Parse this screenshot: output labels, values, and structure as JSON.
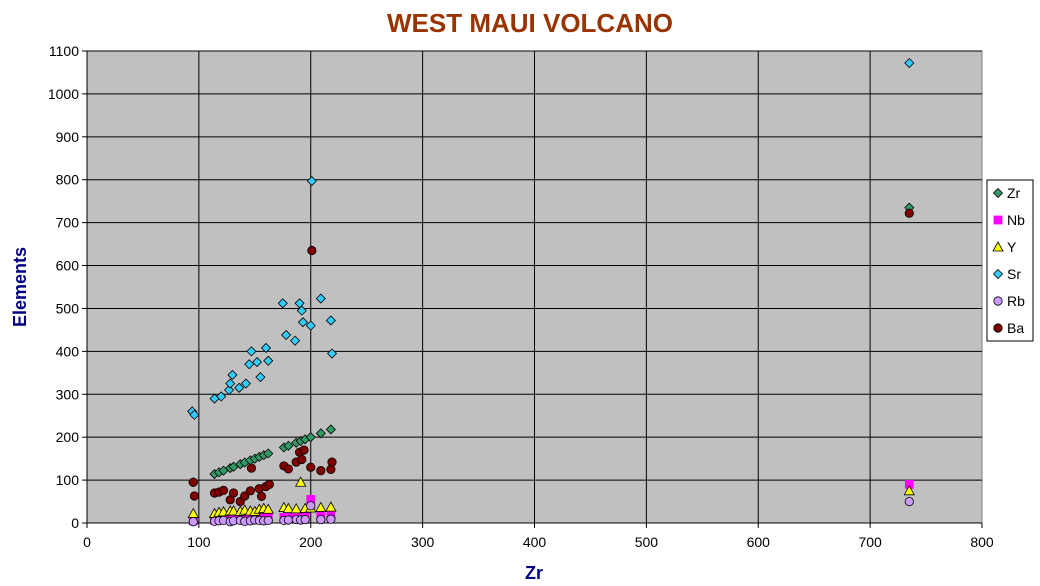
{
  "chart_data": {
    "type": "scatter",
    "title": "WEST MAUI VOLCANO",
    "xlabel": "Zr",
    "ylabel": "Elements",
    "xlim": [
      0,
      800
    ],
    "ylim": [
      0,
      1100
    ],
    "xticks": [
      "0",
      "100",
      "200",
      "300",
      "400",
      "500",
      "600",
      "700",
      "800"
    ],
    "yticks": [
      "0",
      "100",
      "200",
      "300",
      "400",
      "500",
      "600",
      "700",
      "800",
      "900",
      "1000",
      "1100"
    ],
    "grid": true,
    "legend_position": "right",
    "plot_background": "#c0c0c0",
    "series": [
      {
        "name": "Zr",
        "marker": "diamond",
        "color": "#339966",
        "points": [
          [
            95,
            95
          ],
          [
            114,
            114
          ],
          [
            118,
            118
          ],
          [
            122,
            122
          ],
          [
            128,
            128
          ],
          [
            131,
            131
          ],
          [
            137,
            137
          ],
          [
            141,
            141
          ],
          [
            146,
            146
          ],
          [
            150,
            150
          ],
          [
            154,
            154
          ],
          [
            158,
            158
          ],
          [
            162,
            162
          ],
          [
            176,
            176
          ],
          [
            180,
            180
          ],
          [
            187,
            187
          ],
          [
            191,
            191
          ],
          [
            195,
            195
          ],
          [
            200,
            200
          ],
          [
            209,
            209
          ],
          [
            218,
            218
          ],
          [
            735,
            735
          ]
        ]
      },
      {
        "name": "Nb",
        "marker": "square",
        "color": "#ff00ff",
        "points": [
          [
            95,
            5
          ],
          [
            114,
            6
          ],
          [
            118,
            7
          ],
          [
            122,
            8
          ],
          [
            128,
            8
          ],
          [
            131,
            9
          ],
          [
            137,
            9
          ],
          [
            141,
            10
          ],
          [
            146,
            10
          ],
          [
            150,
            10
          ],
          [
            154,
            11
          ],
          [
            158,
            12
          ],
          [
            162,
            12
          ],
          [
            176,
            13
          ],
          [
            180,
            13
          ],
          [
            187,
            14
          ],
          [
            191,
            14
          ],
          [
            195,
            15
          ],
          [
            200,
            55
          ],
          [
            209,
            20
          ],
          [
            218,
            18
          ],
          [
            735,
            90
          ]
        ]
      },
      {
        "name": "Y",
        "marker": "triangle",
        "color": "#ffff00",
        "points": [
          [
            95,
            22
          ],
          [
            114,
            22
          ],
          [
            118,
            25
          ],
          [
            122,
            26
          ],
          [
            128,
            28
          ],
          [
            131,
            28
          ],
          [
            137,
            27
          ],
          [
            141,
            30
          ],
          [
            146,
            28
          ],
          [
            150,
            27
          ],
          [
            154,
            32
          ],
          [
            158,
            34
          ],
          [
            162,
            32
          ],
          [
            176,
            36
          ],
          [
            180,
            34
          ],
          [
            187,
            33
          ],
          [
            191,
            95
          ],
          [
            195,
            34
          ],
          [
            200,
            35
          ],
          [
            209,
            36
          ],
          [
            218,
            37
          ],
          [
            735,
            75
          ]
        ]
      },
      {
        "name": "Sr",
        "marker": "diamond",
        "color": "#33ccff",
        "points": [
          [
            94,
            260
          ],
          [
            96,
            252
          ],
          [
            114,
            290
          ],
          [
            120,
            295
          ],
          [
            127,
            310
          ],
          [
            128,
            325
          ],
          [
            130,
            345
          ],
          [
            136,
            315
          ],
          [
            142,
            325
          ],
          [
            145,
            370
          ],
          [
            147,
            400
          ],
          [
            152,
            375
          ],
          [
            155,
            340
          ],
          [
            160,
            408
          ],
          [
            162,
            378
          ],
          [
            175,
            512
          ],
          [
            178,
            438
          ],
          [
            186,
            425
          ],
          [
            190,
            512
          ],
          [
            192,
            495
          ],
          [
            193,
            468
          ],
          [
            200,
            460
          ],
          [
            201,
            797
          ],
          [
            209,
            523
          ],
          [
            218,
            472
          ],
          [
            219,
            395
          ],
          [
            735,
            1072
          ]
        ]
      },
      {
        "name": "Rb",
        "marker": "circle",
        "color": "#cc99ff",
        "points": [
          [
            95,
            3
          ],
          [
            114,
            4
          ],
          [
            118,
            5
          ],
          [
            122,
            6
          ],
          [
            128,
            3
          ],
          [
            131,
            5
          ],
          [
            137,
            6
          ],
          [
            141,
            4
          ],
          [
            146,
            5
          ],
          [
            150,
            7
          ],
          [
            154,
            6
          ],
          [
            158,
            5
          ],
          [
            162,
            6
          ],
          [
            176,
            6
          ],
          [
            180,
            7
          ],
          [
            187,
            8
          ],
          [
            191,
            7
          ],
          [
            195,
            8
          ],
          [
            200,
            40
          ],
          [
            209,
            8
          ],
          [
            218,
            9
          ],
          [
            735,
            50
          ]
        ]
      },
      {
        "name": "Ba",
        "marker": "circle",
        "color": "#800000",
        "points": [
          [
            95,
            95
          ],
          [
            96,
            63
          ],
          [
            114,
            70
          ],
          [
            118,
            72
          ],
          [
            122,
            76
          ],
          [
            128,
            54
          ],
          [
            131,
            70
          ],
          [
            137,
            50
          ],
          [
            141,
            63
          ],
          [
            146,
            75
          ],
          [
            147,
            128
          ],
          [
            154,
            80
          ],
          [
            156,
            62
          ],
          [
            160,
            85
          ],
          [
            163,
            90
          ],
          [
            176,
            133
          ],
          [
            180,
            126
          ],
          [
            187,
            142
          ],
          [
            190,
            165
          ],
          [
            192,
            148
          ],
          [
            194,
            170
          ],
          [
            200,
            130
          ],
          [
            201,
            635
          ],
          [
            209,
            122
          ],
          [
            218,
            125
          ],
          [
            219,
            142
          ],
          [
            735,
            722
          ]
        ]
      }
    ]
  }
}
